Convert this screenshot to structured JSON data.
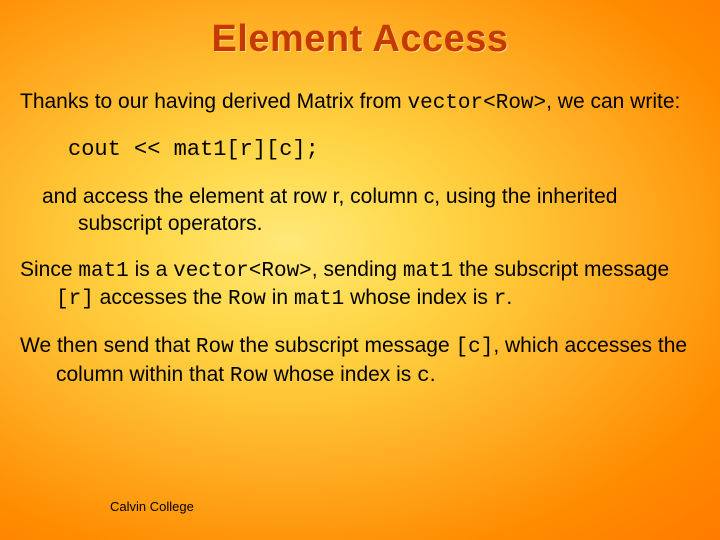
{
  "colors": {
    "title_color": "#c43a00",
    "bg_gradient_stops": [
      "#ffe97a",
      "#ffd94c",
      "#ffc737",
      "#ffa91f",
      "#ff8c00",
      "#ff7700"
    ],
    "text_color": "#000000"
  },
  "typography": {
    "title_fontsize": 38,
    "body_fontsize": 21,
    "code_fontsize": 22,
    "footer_fontsize": 13,
    "title_font": "Verdana",
    "body_font": "Verdana",
    "mono_font": "Courier New"
  },
  "title": "Element Access",
  "p1_a": "Thanks to our having derived Matrix from ",
  "p1_code": "vector<Row>",
  "p1_b": ", we can write:",
  "codeline": "cout << mat1[r][c];",
  "p2": "and access the element at row r, column c, using the inherited subscript operators.",
  "p3_a": "Since ",
  "p3_mat1a": "mat1",
  "p3_b": " is a ",
  "p3_vec": "vector<Row>",
  "p3_c": ", sending ",
  "p3_mat1b": "mat1",
  "p3_d": " the subscript message ",
  "p3_r": "[r]",
  "p3_e": " accesses the ",
  "p3_row": "Row",
  "p3_f": " in ",
  "p3_mat1c": "mat1",
  "p3_g": " whose index is ",
  "p3_rr": "r",
  "p3_h": ".",
  "p4_a": "We then send that ",
  "p4_row": "Row",
  "p4_b": " the subscript message ",
  "p4_c": "[c]",
  "p4_d": ", which accesses the column within that ",
  "p4_row2": "Row",
  "p4_e": " whose index is ",
  "p4_cc": "c",
  "p4_f": ".",
  "footer": "Calvin College"
}
